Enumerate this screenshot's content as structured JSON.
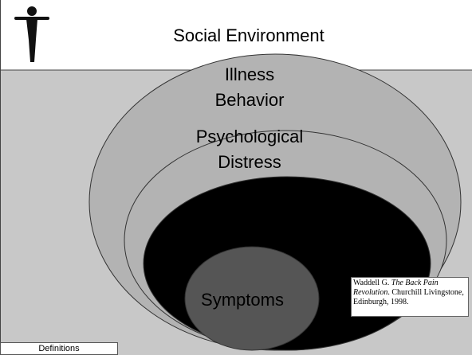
{
  "header": {
    "title": "Social Environment"
  },
  "layers": [
    {
      "label_lines": [
        "Illness",
        "Behavior"
      ]
    },
    {
      "label_lines": [
        "Psychological",
        "Distress"
      ]
    },
    {
      "label_lines": []
    },
    {
      "label_lines": [
        "Symptoms"
      ]
    }
  ],
  "citation": {
    "author": "Waddell G.",
    "book": "The Back Pain Revolution",
    "rest": ". Churchill Livingstone, Edinburgh, 1998."
  },
  "footer": {
    "tab": "Definitions"
  }
}
